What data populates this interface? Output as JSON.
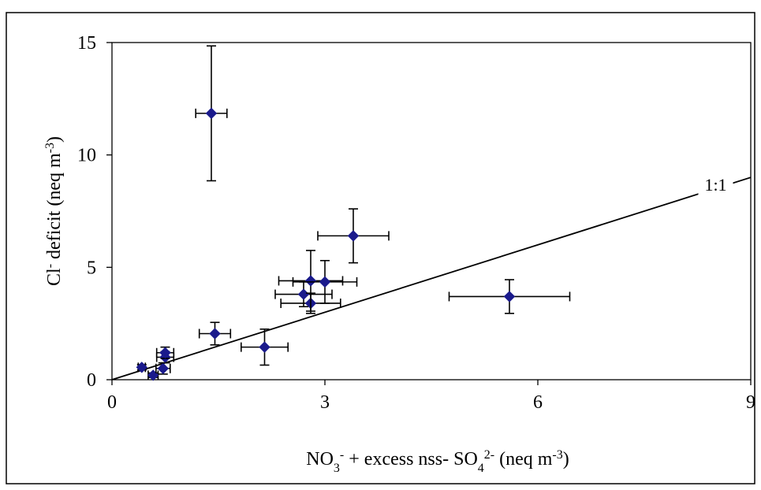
{
  "chart_data": {
    "type": "scatter",
    "xlim": [
      0,
      9
    ],
    "ylim": [
      0,
      15
    ],
    "x_ticks": [
      "0",
      "3",
      "6",
      "9"
    ],
    "y_ticks": [
      "0",
      "5",
      "10",
      "15"
    ],
    "grid": false,
    "legend": "none",
    "xlabel": {
      "parts": [
        {
          "text": "NO",
          "shift": "none"
        },
        {
          "text": "3",
          "shift": "sub"
        },
        {
          "text": "-",
          "shift": "super"
        },
        {
          "text": " + excess nss- SO",
          "shift": "none"
        },
        {
          "text": "4",
          "shift": "sub"
        },
        {
          "text": "2-",
          "shift": "super"
        },
        {
          "text": " (neq m",
          "shift": "none"
        },
        {
          "text": "-3",
          "shift": "super"
        },
        {
          "text": ")",
          "shift": "none"
        }
      ]
    },
    "ylabel": {
      "parts": [
        {
          "text": "Cl",
          "shift": "none"
        },
        {
          "text": "-",
          "shift": "super"
        },
        {
          "text": " deficit (neq m",
          "shift": "none"
        },
        {
          "text": "-3",
          "shift": "super"
        },
        {
          "text": ")",
          "shift": "none"
        }
      ]
    },
    "reference_line": {
      "label": "1:1",
      "x": [
        0,
        9
      ],
      "y": [
        0,
        9
      ]
    },
    "marker_color": "#1a1a8c",
    "points": [
      {
        "x": 0.42,
        "y": 0.55,
        "xerr": 0.05,
        "yerr": 0.12
      },
      {
        "x": 0.58,
        "y": 0.2,
        "xerr": 0.07,
        "yerr": 0.1
      },
      {
        "x": 0.72,
        "y": 0.5,
        "xerr": 0.1,
        "yerr": 0.25
      },
      {
        "x": 0.75,
        "y": 1.0,
        "xerr": 0.12,
        "yerr": 0.25
      },
      {
        "x": 0.75,
        "y": 1.2,
        "xerr": 0.12,
        "yerr": 0.25
      },
      {
        "x": 1.4,
        "y": 11.85,
        "xerr": 0.22,
        "yerr": 3.0
      },
      {
        "x": 1.45,
        "y": 2.05,
        "xerr": 0.22,
        "yerr": 0.5
      },
      {
        "x": 2.15,
        "y": 1.45,
        "xerr": 0.33,
        "yerr": 0.8
      },
      {
        "x": 2.7,
        "y": 3.8,
        "xerr": 0.4,
        "yerr": 0.55
      },
      {
        "x": 2.8,
        "y": 3.4,
        "xerr": 0.42,
        "yerr": 0.45
      },
      {
        "x": 2.8,
        "y": 4.4,
        "xerr": 0.45,
        "yerr": 1.35
      },
      {
        "x": 3.0,
        "y": 4.35,
        "xerr": 0.45,
        "yerr": 0.95
      },
      {
        "x": 3.4,
        "y": 6.4,
        "xerr": 0.5,
        "yerr": 1.2
      },
      {
        "x": 5.6,
        "y": 3.7,
        "xerr": 0.85,
        "yerr": 0.75
      }
    ]
  }
}
